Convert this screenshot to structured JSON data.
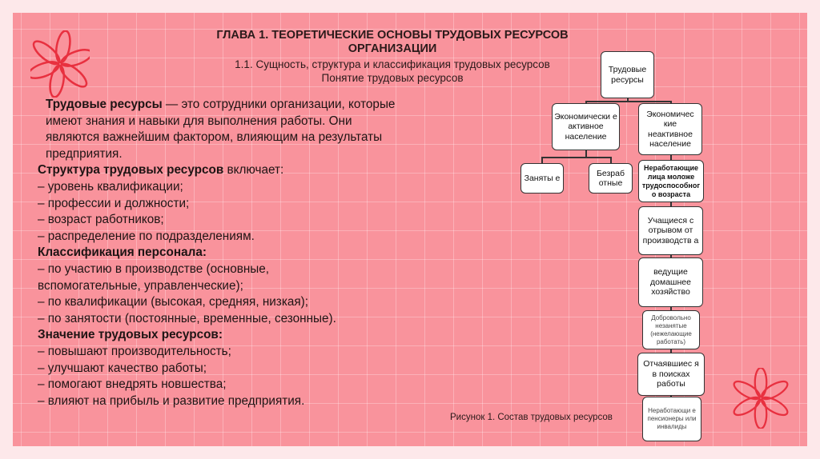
{
  "header": {
    "title_line1": "ГЛАВА 1. ТЕОРЕТИЧЕСКИЕ ОСНОВЫ ТРУДОВЫХ РЕСУРСОВ",
    "title_line2": "ОРГАНИЗАЦИИ",
    "subtitle_line1": "1.1. Сущность, структура и классификация трудовых ресурсов",
    "subtitle_line2": "Понятие трудовых ресурсов"
  },
  "body": {
    "definition_term": "Трудовые ресурсы",
    "definition_text": " — это сотрудники организации, которые имеют знания и навыки для выполнения работы. Они являются важнейшим фактором, влияющим на результаты предприятия.",
    "structure_heading": "Структура трудовых ресурсов",
    "structure_suffix": " включает:",
    "structure_items": [
      "– уровень квалификации;",
      "– профессии и должности;",
      "– возраст работников;",
      "– распределение по подразделениям."
    ],
    "classification_heading": "Классификация персонала:",
    "classification_items": [
      "– по участию в производстве (основные, вспомогательные, управленческие);",
      "– по квалификации (высокая, средняя, низкая);",
      "– по занятости (постоянные, временные, сезонные)."
    ],
    "importance_heading": "Значение трудовых ресурсов:",
    "importance_items": [
      "– повышают производительность;",
      "– улучшают качество работы;",
      "– помогают внедрять новшества;",
      "– влияют на прибыль и развитие предприятия."
    ]
  },
  "diagram": {
    "root": "Трудовые ресурсы",
    "active": "Экономически е активное население",
    "inactive": "Экономичес кие неактивное население",
    "employed": "Заняты е",
    "unemployed": "Безраб отные",
    "inactive_items": [
      "Неработающие лица моложе трудоспособног о возраста",
      "Учащиеся с отрывом от производств а",
      "ведущие домашнее хозяйство",
      "Добровольно незанятые (нежелающие работать)",
      "Отчаявшиес я в поисках работы",
      "Неработающи е пенсионеры или инвалиды"
    ],
    "caption": "Рисунок 1. Состав трудовых ресурсов"
  },
  "colors": {
    "background": "#f9939c",
    "border": "#fde8ea",
    "flower": "#e8303f"
  }
}
